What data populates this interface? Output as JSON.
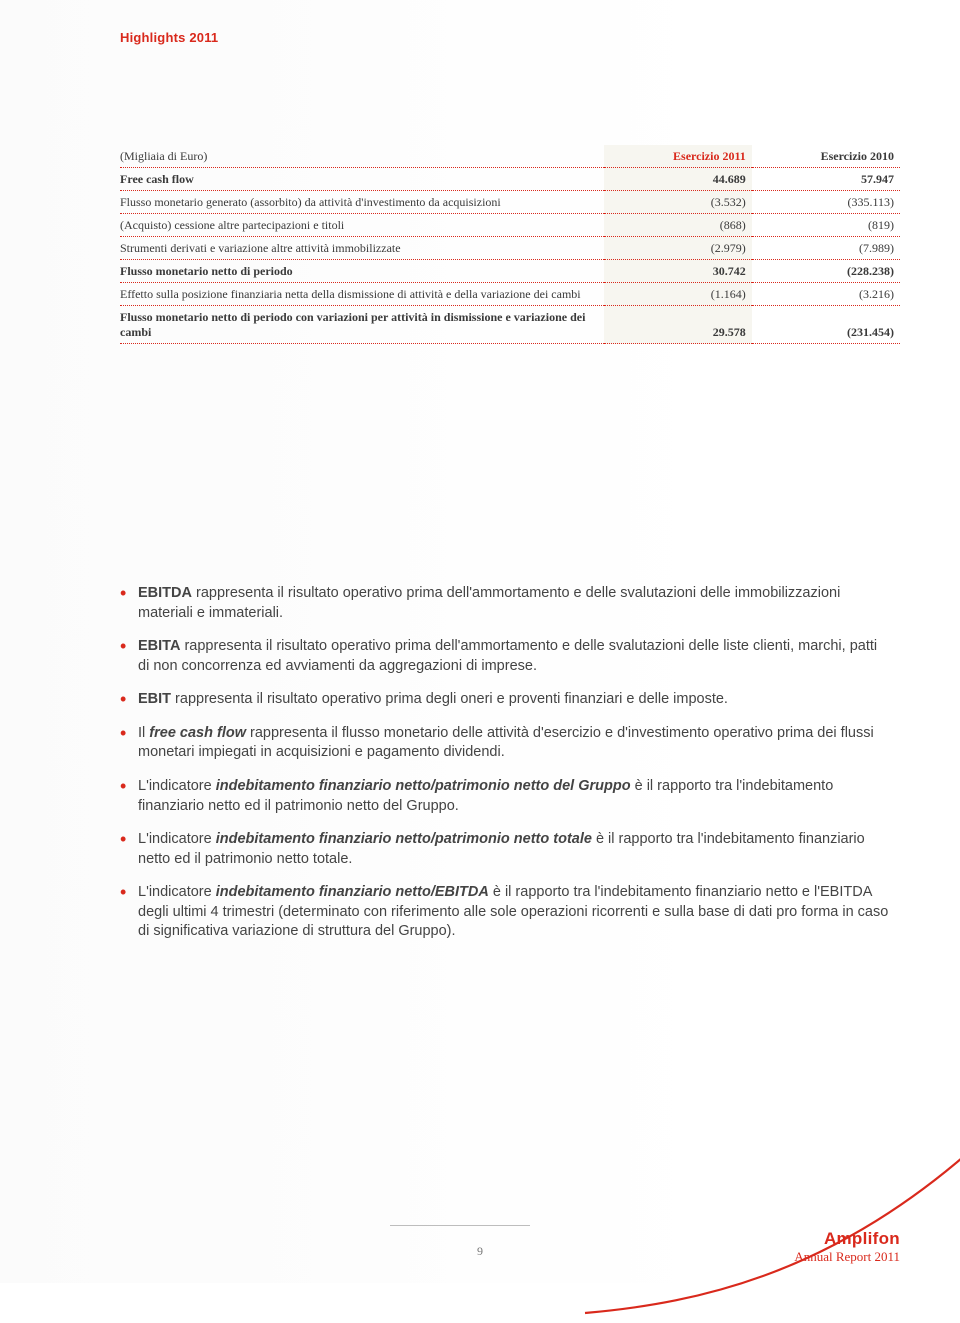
{
  "header": {
    "label": "Highlights 2011"
  },
  "table": {
    "caption_left": "(Migliaia di Euro)",
    "col1_header": "Esercizio 2011",
    "col2_header": "Esercizio 2010",
    "rows": [
      {
        "label": "Free cash flow",
        "v1": "44.689",
        "v2": "57.947",
        "bold": true
      },
      {
        "label": "Flusso monetario generato (assorbito) da attività d'investimento da acquisizioni",
        "v1": "(3.532)",
        "v2": "(335.113)"
      },
      {
        "label": "(Acquisto) cessione altre partecipazioni e titoli",
        "v1": "(868)",
        "v2": "(819)"
      },
      {
        "label": "Strumenti derivati e variazione altre attività immobilizzate",
        "v1": "(2.979)",
        "v2": "(7.989)"
      },
      {
        "label": "Flusso monetario netto di periodo",
        "v1": "30.742",
        "v2": "(228.238)",
        "bold": true
      },
      {
        "label": "Effetto sulla posizione finanziaria netta della dismissione di attività e della variazione dei cambi",
        "v1": "(1.164)",
        "v2": "(3.216)"
      },
      {
        "label": "Flusso monetario netto di periodo con variazioni per attività in dismissione e variazione dei cambi",
        "v1": "29.578",
        "v2": "(231.454)",
        "bold": true
      }
    ],
    "colors": {
      "accent": "#d9291c",
      "highlight_bg": "#f7f6f0",
      "text": "#3a3a3a",
      "dotted": "#d9291c"
    }
  },
  "notes": [
    {
      "lead": "EBITDA",
      "text": " rappresenta il risultato operativo prima dell'ammortamento e delle svalutazioni delle immobilizzazioni materiali e immateriali."
    },
    {
      "lead": "EBITA",
      "text": " rappresenta il risultato operativo prima dell'ammortamento e delle svalutazioni delle liste clienti, marchi, patti di non concorrenza ed avviamenti da aggregazioni di imprese."
    },
    {
      "lead": "EBIT",
      "text": " rappresenta il risultato operativo prima degli oneri e proventi finanziari e delle imposte."
    },
    {
      "lead_it": "Il ",
      "ital": "free cash flow",
      "text": " rappresenta il flusso monetario delle attività d'esercizio e d'investimento operativo prima dei flussi monetari impiegati in acquisizioni e pagamento dividendi."
    },
    {
      "lead_it": "L'indicatore ",
      "ital": "indebitamento finanziario netto/patrimonio netto del Gruppo",
      "text": " è il rapporto tra l'indebitamento finanziario netto ed il patrimonio netto del Gruppo."
    },
    {
      "lead_it": "L'indicatore ",
      "ital": "indebitamento finanziario netto/patrimonio netto totale",
      "text": " è il rapporto tra l'indebitamento finanziario netto ed il patrimonio netto totale."
    },
    {
      "lead_it": "L'indicatore ",
      "ital": "indebitamento finanziario netto/EBITDA",
      "text": " è il rapporto tra l'indebitamento finanziario netto e l'EBITDA degli ultimi 4 trimestri (determinato con riferimento alle sole operazioni ricorrenti e sulla base di dati pro forma in caso di significativa variazione di struttura del Gruppo)."
    }
  ],
  "footer": {
    "page_number": "9",
    "brand_name": "Amplifon",
    "brand_sub": "Annual Report 2011"
  }
}
